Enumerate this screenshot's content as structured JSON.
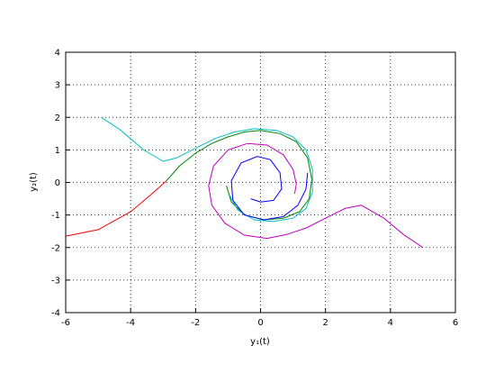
{
  "chart_data": {
    "type": "line",
    "xlabel": "y₁(t)",
    "ylabel": "y₂(t)",
    "xlim": [
      -6,
      6
    ],
    "ylim": [
      -4,
      4
    ],
    "xticks": [
      -6,
      -4,
      -2,
      0,
      2,
      4,
      6
    ],
    "yticks": [
      -4,
      -3,
      -2,
      -1,
      0,
      1,
      2,
      3,
      4
    ],
    "grid": true,
    "series": [
      {
        "color": "#ff0000",
        "x": [
          -6,
          -5,
          -4,
          -3.4,
          -2.9
        ],
        "y": [
          -1.65,
          -1.45,
          -0.9,
          -0.4,
          0.05
        ]
      },
      {
        "color": "#008000",
        "x": [
          -2.9,
          -2.5,
          -2,
          -1.5,
          -1,
          -0.5,
          0,
          0.6,
          1.1,
          1.45,
          1.58,
          1.5,
          1.2,
          0.7,
          0.1,
          -0.5,
          -0.9,
          -1.05
        ],
        "y": [
          0.05,
          0.5,
          0.9,
          1.2,
          1.4,
          1.55,
          1.6,
          1.5,
          1.25,
          0.75,
          0.1,
          -0.5,
          -0.9,
          -1.1,
          -1.15,
          -1,
          -0.6,
          -0.1
        ]
      },
      {
        "color": "#00bfbf",
        "x": [
          -4.9,
          -4.3,
          -3.6,
          -3,
          -2.6,
          -2,
          -1.4,
          -0.8,
          -0.2,
          0.5,
          1,
          1.4,
          1.6,
          1.6,
          1.4,
          1,
          0.4,
          -0.2,
          -0.7,
          -0.95
        ],
        "y": [
          2,
          1.6,
          1,
          0.65,
          0.75,
          1.05,
          1.35,
          1.55,
          1.65,
          1.6,
          1.4,
          1,
          0.4,
          -0.3,
          -0.8,
          -1.1,
          -1.2,
          -1.15,
          -0.85,
          -0.4
        ]
      },
      {
        "color": "#bf00bf",
        "x": [
          5,
          4.4,
          3.8,
          3.1,
          2.6,
          2,
          1.4,
          0.8,
          0.2,
          -0.5,
          -1.1,
          -1.5,
          -1.6,
          -1.45,
          -1,
          -0.4,
          0.2,
          0.7,
          1,
          1.1,
          1.05
        ],
        "y": [
          -2,
          -1.6,
          -1.1,
          -0.7,
          -0.8,
          -1.1,
          -1.4,
          -1.6,
          -1.72,
          -1.62,
          -1.25,
          -0.7,
          -0.1,
          0.5,
          1,
          1.2,
          1.15,
          0.85,
          0.4,
          -0.05,
          -0.35
        ]
      },
      {
        "color": "#0000ff",
        "x": [
          -0.3,
          0,
          0.4,
          0.65,
          0.6,
          0.3,
          -0.1,
          -0.6,
          -0.9,
          -0.85,
          -0.5,
          0.1,
          0.7,
          1.15,
          1.4,
          1.45
        ],
        "y": [
          -0.5,
          -0.6,
          -0.55,
          -0.2,
          0.3,
          0.7,
          0.8,
          0.6,
          0.05,
          -0.55,
          -1,
          -1.15,
          -1.05,
          -0.7,
          -0.2,
          0.3
        ]
      }
    ]
  }
}
